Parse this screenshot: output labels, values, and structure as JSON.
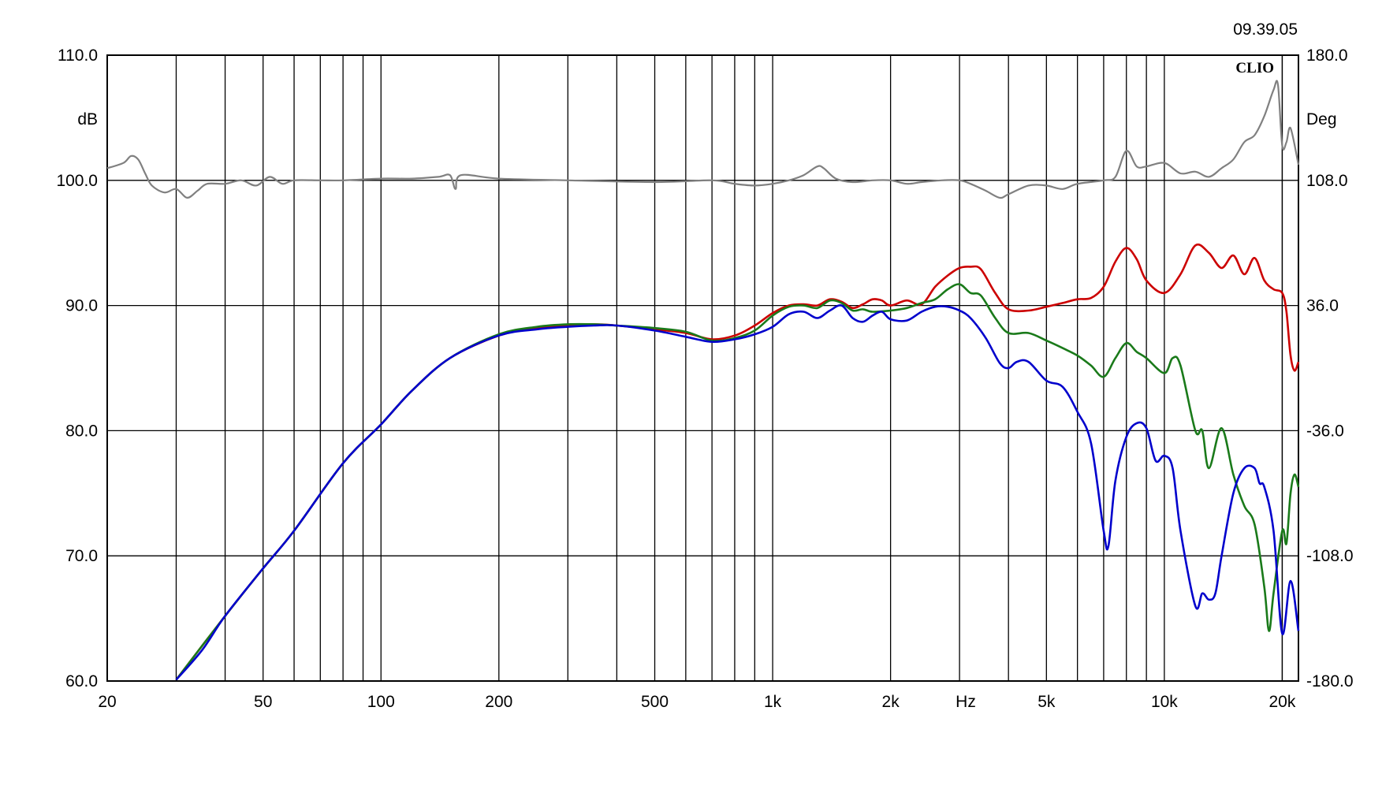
{
  "timestamp": "09.39.05",
  "brand": "CLIO",
  "chart_data": {
    "type": "line",
    "x_scale": "log",
    "xlim": [
      20,
      22000
    ],
    "ylim": [
      60,
      110
    ],
    "y2lim": [
      -180,
      180
    ],
    "grid": true,
    "xlabel": "Hz",
    "ylabel": "dB",
    "y2label": "Deg",
    "x_ticks": [
      {
        "value": 20,
        "label": "20"
      },
      {
        "value": 50,
        "label": "50"
      },
      {
        "value": 100,
        "label": "100"
      },
      {
        "value": 200,
        "label": "200"
      },
      {
        "value": 500,
        "label": "500"
      },
      {
        "value": 1000,
        "label": "1k"
      },
      {
        "value": 2000,
        "label": "2k"
      },
      {
        "value": 5000,
        "label": "5k"
      },
      {
        "value": 10000,
        "label": "10k"
      },
      {
        "value": 20000,
        "label": "20k"
      }
    ],
    "y_ticks": [
      "60.0",
      "70.0",
      "80.0",
      "90.0",
      "100.0",
      "110.0"
    ],
    "y2_ticks": [
      "-180.0",
      "-108.0",
      "-36.0",
      "36.0",
      "108.0",
      "180.0"
    ],
    "series": [
      {
        "color": "#808080",
        "axis": "y2",
        "points": [
          [
            20,
            115
          ],
          [
            22,
            118
          ],
          [
            23,
            122
          ],
          [
            24,
            120
          ],
          [
            25,
            112
          ],
          [
            26,
            105
          ],
          [
            28,
            101
          ],
          [
            30,
            103
          ],
          [
            32,
            98
          ],
          [
            34,
            102
          ],
          [
            36,
            106
          ],
          [
            40,
            106
          ],
          [
            44,
            108
          ],
          [
            48,
            105
          ],
          [
            52,
            110
          ],
          [
            56,
            106
          ],
          [
            60,
            108
          ],
          [
            70,
            108
          ],
          [
            80,
            108
          ],
          [
            100,
            109
          ],
          [
            120,
            109
          ],
          [
            140,
            110
          ],
          [
            150,
            111
          ],
          [
            155,
            103
          ],
          [
            160,
            111
          ],
          [
            200,
            109
          ],
          [
            300,
            108
          ],
          [
            500,
            107
          ],
          [
            700,
            108
          ],
          [
            800,
            106
          ],
          [
            900,
            105
          ],
          [
            1000,
            106
          ],
          [
            1100,
            108
          ],
          [
            1200,
            111
          ],
          [
            1300,
            116
          ],
          [
            1350,
            115
          ],
          [
            1450,
            109
          ],
          [
            1600,
            107
          ],
          [
            1800,
            108
          ],
          [
            2000,
            108
          ],
          [
            2200,
            106
          ],
          [
            2400,
            107
          ],
          [
            2700,
            108
          ],
          [
            3000,
            108
          ],
          [
            3200,
            106
          ],
          [
            3500,
            102
          ],
          [
            3800,
            98
          ],
          [
            4000,
            100
          ],
          [
            4500,
            105
          ],
          [
            5000,
            105
          ],
          [
            5500,
            103
          ],
          [
            6000,
            106
          ],
          [
            7000,
            108
          ],
          [
            7500,
            110
          ],
          [
            8000,
            125
          ],
          [
            8500,
            116
          ],
          [
            9000,
            116
          ],
          [
            10000,
            118
          ],
          [
            11000,
            112
          ],
          [
            12000,
            113
          ],
          [
            13000,
            110
          ],
          [
            14000,
            115
          ],
          [
            15000,
            120
          ],
          [
            16000,
            130
          ],
          [
            17000,
            134
          ],
          [
            18000,
            145
          ],
          [
            19000,
            160
          ],
          [
            19500,
            163
          ],
          [
            20000,
            128
          ],
          [
            20500,
            130
          ],
          [
            21000,
            138
          ],
          [
            22000,
            117
          ]
        ]
      },
      {
        "color": "#cc0000",
        "axis": "y",
        "points": [
          [
            30,
            60.1
          ],
          [
            40,
            65.2
          ],
          [
            50,
            69.0
          ],
          [
            60,
            72.0
          ],
          [
            80,
            77.4
          ],
          [
            100,
            80.5
          ],
          [
            120,
            83.2
          ],
          [
            150,
            85.8
          ],
          [
            200,
            87.6
          ],
          [
            250,
            88.2
          ],
          [
            300,
            88.4
          ],
          [
            350,
            88.5
          ],
          [
            400,
            88.4
          ],
          [
            500,
            88.1
          ],
          [
            600,
            87.8
          ],
          [
            700,
            87.3
          ],
          [
            800,
            87.6
          ],
          [
            900,
            88.4
          ],
          [
            1000,
            89.4
          ],
          [
            1100,
            90.0
          ],
          [
            1200,
            90.1
          ],
          [
            1300,
            90.0
          ],
          [
            1400,
            90.5
          ],
          [
            1500,
            90.3
          ],
          [
            1600,
            89.8
          ],
          [
            1700,
            90.1
          ],
          [
            1800,
            90.5
          ],
          [
            1900,
            90.4
          ],
          [
            2000,
            90.0
          ],
          [
            2200,
            90.4
          ],
          [
            2400,
            90.1
          ],
          [
            2600,
            91.5
          ],
          [
            2800,
            92.4
          ],
          [
            3000,
            93.0
          ],
          [
            3200,
            93.1
          ],
          [
            3400,
            92.9
          ],
          [
            3700,
            91.0
          ],
          [
            4000,
            89.7
          ],
          [
            4500,
            89.6
          ],
          [
            5000,
            89.9
          ],
          [
            5500,
            90.2
          ],
          [
            6000,
            90.5
          ],
          [
            6500,
            90.6
          ],
          [
            7000,
            91.5
          ],
          [
            7500,
            93.5
          ],
          [
            8000,
            94.6
          ],
          [
            8500,
            93.7
          ],
          [
            9000,
            92.0
          ],
          [
            10000,
            91.0
          ],
          [
            11000,
            92.5
          ],
          [
            12000,
            94.8
          ],
          [
            13000,
            94.2
          ],
          [
            14000,
            93.0
          ],
          [
            15000,
            94.0
          ],
          [
            16000,
            92.5
          ],
          [
            17000,
            93.8
          ],
          [
            18000,
            92.0
          ],
          [
            19000,
            91.3
          ],
          [
            20000,
            91.0
          ],
          [
            20500,
            89.5
          ],
          [
            21000,
            86.0
          ],
          [
            21500,
            84.8
          ],
          [
            22000,
            85.5
          ]
        ]
      },
      {
        "color": "#1a7a1a",
        "axis": "y",
        "points": [
          [
            30,
            60.1
          ],
          [
            40,
            65.2
          ],
          [
            50,
            69.0
          ],
          [
            60,
            72.0
          ],
          [
            80,
            77.4
          ],
          [
            100,
            80.5
          ],
          [
            120,
            83.2
          ],
          [
            150,
            85.8
          ],
          [
            200,
            87.7
          ],
          [
            250,
            88.3
          ],
          [
            300,
            88.5
          ],
          [
            350,
            88.5
          ],
          [
            400,
            88.4
          ],
          [
            500,
            88.2
          ],
          [
            600,
            87.9
          ],
          [
            700,
            87.2
          ],
          [
            800,
            87.4
          ],
          [
            900,
            88.0
          ],
          [
            1000,
            89.2
          ],
          [
            1100,
            89.9
          ],
          [
            1200,
            90.0
          ],
          [
            1300,
            89.8
          ],
          [
            1400,
            90.4
          ],
          [
            1500,
            90.2
          ],
          [
            1600,
            89.6
          ],
          [
            1700,
            89.7
          ],
          [
            1800,
            89.5
          ],
          [
            2000,
            89.6
          ],
          [
            2200,
            89.8
          ],
          [
            2400,
            90.2
          ],
          [
            2600,
            90.5
          ],
          [
            2800,
            91.3
          ],
          [
            3000,
            91.7
          ],
          [
            3200,
            91.0
          ],
          [
            3400,
            90.8
          ],
          [
            3700,
            89.0
          ],
          [
            4000,
            87.8
          ],
          [
            4500,
            87.8
          ],
          [
            5000,
            87.2
          ],
          [
            5500,
            86.6
          ],
          [
            6000,
            86.0
          ],
          [
            6500,
            85.2
          ],
          [
            7000,
            84.3
          ],
          [
            7500,
            85.8
          ],
          [
            8000,
            87.0
          ],
          [
            8500,
            86.3
          ],
          [
            9000,
            85.8
          ],
          [
            10000,
            84.6
          ],
          [
            10500,
            85.8
          ],
          [
            11000,
            85.2
          ],
          [
            12000,
            80.0
          ],
          [
            12500,
            80.0
          ],
          [
            13000,
            77.0
          ],
          [
            14000,
            80.2
          ],
          [
            15000,
            76.5
          ],
          [
            16000,
            74.0
          ],
          [
            17000,
            72.5
          ],
          [
            18000,
            67.5
          ],
          [
            18500,
            64.0
          ],
          [
            19000,
            67.0
          ],
          [
            20000,
            72.0
          ],
          [
            20500,
            71.0
          ],
          [
            21000,
            75.0
          ],
          [
            21500,
            76.5
          ],
          [
            22000,
            75.5
          ]
        ]
      },
      {
        "color": "#0000cc",
        "axis": "y",
        "points": [
          [
            30,
            60.1
          ],
          [
            35,
            62.5
          ],
          [
            40,
            65.2
          ],
          [
            50,
            69.0
          ],
          [
            60,
            72.0
          ],
          [
            80,
            77.4
          ],
          [
            100,
            80.5
          ],
          [
            120,
            83.2
          ],
          [
            150,
            85.8
          ],
          [
            200,
            87.6
          ],
          [
            250,
            88.1
          ],
          [
            300,
            88.3
          ],
          [
            350,
            88.4
          ],
          [
            400,
            88.4
          ],
          [
            500,
            88.0
          ],
          [
            600,
            87.5
          ],
          [
            700,
            87.1
          ],
          [
            800,
            87.3
          ],
          [
            900,
            87.7
          ],
          [
            1000,
            88.3
          ],
          [
            1100,
            89.3
          ],
          [
            1200,
            89.5
          ],
          [
            1300,
            89.0
          ],
          [
            1400,
            89.6
          ],
          [
            1500,
            90.0
          ],
          [
            1600,
            89.0
          ],
          [
            1700,
            88.7
          ],
          [
            1800,
            89.2
          ],
          [
            1900,
            89.5
          ],
          [
            2000,
            88.9
          ],
          [
            2200,
            88.8
          ],
          [
            2400,
            89.5
          ],
          [
            2600,
            89.9
          ],
          [
            2800,
            89.9
          ],
          [
            3000,
            89.6
          ],
          [
            3200,
            89.0
          ],
          [
            3500,
            87.4
          ],
          [
            3800,
            85.4
          ],
          [
            4000,
            85.0
          ],
          [
            4200,
            85.5
          ],
          [
            4500,
            85.5
          ],
          [
            5000,
            84.0
          ],
          [
            5500,
            83.5
          ],
          [
            6000,
            81.5
          ],
          [
            6500,
            79.0
          ],
          [
            7000,
            72.0
          ],
          [
            7200,
            70.8
          ],
          [
            7500,
            76.0
          ],
          [
            8000,
            79.5
          ],
          [
            8500,
            80.6
          ],
          [
            9000,
            80.2
          ],
          [
            9500,
            77.6
          ],
          [
            10000,
            78.0
          ],
          [
            10500,
            77.0
          ],
          [
            11000,
            72.0
          ],
          [
            12000,
            66.0
          ],
          [
            12500,
            67.0
          ],
          [
            13000,
            66.5
          ],
          [
            13500,
            67.0
          ],
          [
            14000,
            70.0
          ],
          [
            15000,
            75.0
          ],
          [
            16000,
            77.0
          ],
          [
            17000,
            77.0
          ],
          [
            17500,
            75.8
          ],
          [
            18000,
            75.5
          ],
          [
            19000,
            72.0
          ],
          [
            20000,
            63.8
          ],
          [
            21000,
            68.0
          ],
          [
            22000,
            64.0
          ]
        ]
      }
    ]
  }
}
